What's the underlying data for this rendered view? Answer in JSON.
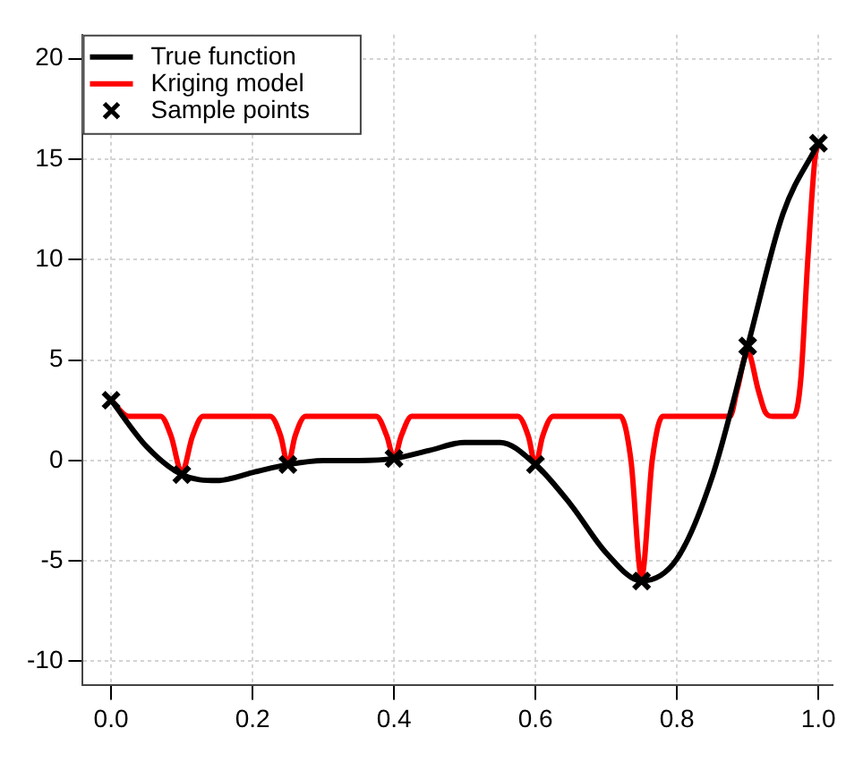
{
  "chart_data": {
    "type": "line",
    "xlim": [
      -0.04,
      1.02
    ],
    "xticks": [
      {
        "value": 0,
        "label": "0.0"
      },
      {
        "value": 0.2,
        "label": "0.2"
      },
      {
        "value": 0.4,
        "label": "0.4"
      },
      {
        "value": 0.6,
        "label": "0.6"
      },
      {
        "value": 0.8,
        "label": "0.8"
      },
      {
        "value": 1,
        "label": "1.0"
      }
    ],
    "ylim": [
      -11.2,
      21.2
    ],
    "yticks": [
      -10,
      -5,
      0,
      5,
      10,
      15,
      20
    ],
    "grid": true,
    "legend": "top left",
    "series": [
      {
        "name": "True function",
        "color": "#000000",
        "marker": "none",
        "x": [
          0,
          0.05,
          0.1,
          0.15,
          0.2,
          0.25,
          0.3,
          0.35,
          0.4,
          0.45,
          0.5,
          0.55,
          0.6,
          0.65,
          0.7,
          0.75,
          0.8,
          0.85,
          0.9,
          0.95,
          1.0
        ],
        "values": [
          3.0,
          0.7,
          -0.7,
          -1.0,
          -0.6,
          -0.2,
          0.0,
          0.0,
          0.1,
          0.5,
          0.9,
          0.9,
          -0.2,
          -2.2,
          -4.6,
          -6.0,
          -4.9,
          -0.8,
          5.7,
          12.3,
          15.8
        ]
      },
      {
        "name": "Kriging model",
        "color": "#ff0000",
        "marker": "none",
        "x": [
          0,
          0.025,
          0.07,
          0.085,
          0.1,
          0.115,
          0.13,
          0.225,
          0.24,
          0.25,
          0.26,
          0.275,
          0.375,
          0.39,
          0.4,
          0.41,
          0.425,
          0.575,
          0.59,
          0.6,
          0.61,
          0.625,
          0.72,
          0.735,
          0.75,
          0.765,
          0.78,
          0.875,
          0.885,
          0.9,
          0.915,
          0.925,
          0.935,
          0.965,
          0.975,
          0.985,
          0.995,
          1.0
        ],
        "values": [
          3.0,
          2.2,
          2.2,
          1.2,
          -0.6,
          1.2,
          2.2,
          2.2,
          1.2,
          -0.2,
          1.2,
          2.2,
          2.2,
          1.2,
          0.1,
          1.2,
          2.2,
          2.2,
          1.2,
          -0.2,
          1.2,
          2.2,
          2.2,
          0.0,
          -5.8,
          0.0,
          2.2,
          2.2,
          3.5,
          5.4,
          3.5,
          2.4,
          2.2,
          2.2,
          4.0,
          10.0,
          15.0,
          15.8
        ]
      },
      {
        "name": "Sample points",
        "type": "scatter",
        "color": "#000000",
        "marker": "cross",
        "x": [
          0,
          0.1,
          0.25,
          0.4,
          0.6,
          0.75,
          0.9,
          1.0
        ],
        "values": [
          3.0,
          -0.7,
          -0.2,
          0.1,
          -0.2,
          -6.0,
          5.7,
          15.8
        ]
      }
    ]
  }
}
